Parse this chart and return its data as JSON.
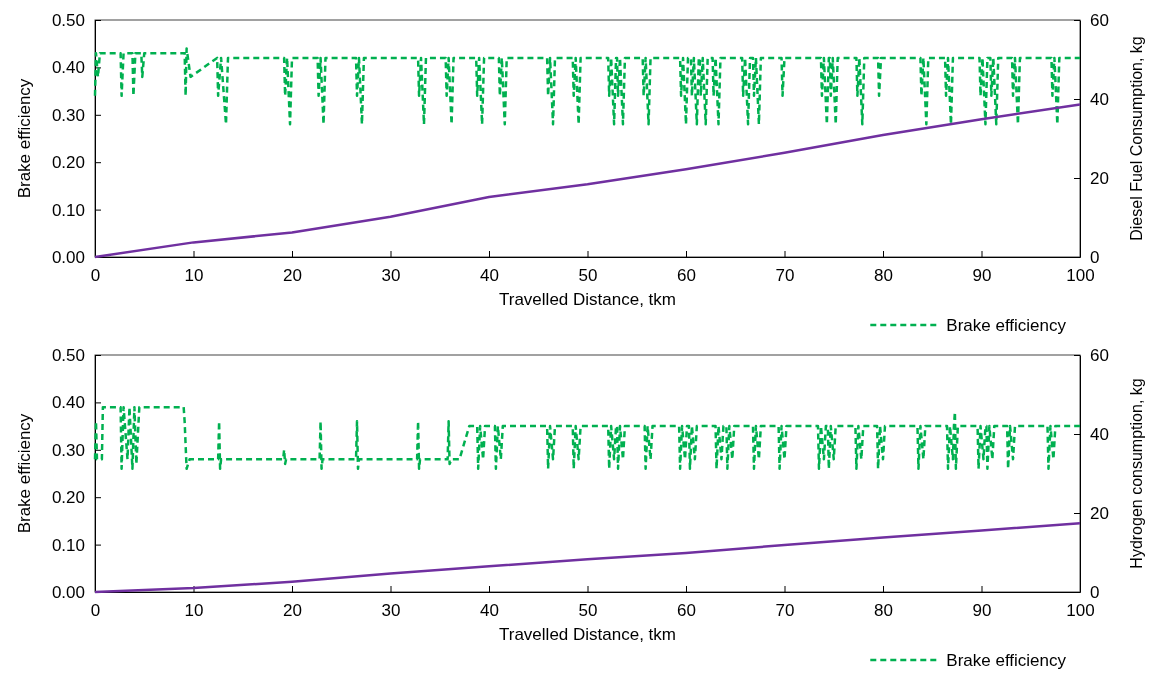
{
  "chart_data": [
    {
      "type": "line",
      "xlabel": "Travelled Distance, tkm",
      "ylabel": "Brake efficiency",
      "y2label": "Diesel Fuel Consumption, kg",
      "xlim": [
        0,
        100
      ],
      "xticks": [
        0,
        10,
        20,
        30,
        40,
        50,
        60,
        70,
        80,
        90,
        100
      ],
      "ylim": [
        0,
        0.5
      ],
      "yticks": [
        {
          "value": 0,
          "label": "0.00"
        },
        {
          "value": 0.1,
          "label": "0.10"
        },
        {
          "value": 0.2,
          "label": "0.20"
        },
        {
          "value": 0.3,
          "label": "0.30"
        },
        {
          "value": 0.4,
          "label": "0.40"
        },
        {
          "value": 0.5,
          "label": "0.50"
        }
      ],
      "y2lim": [
        0,
        60
      ],
      "y2ticks": [
        0,
        20,
        40,
        60
      ],
      "grid": false,
      "legend": "bottom right",
      "series": [
        {
          "name": "Brake efficiency",
          "color": "#00b050",
          "line_style": "dashed",
          "x": [
            0,
            0.1,
            0.3,
            0.5,
            2.6,
            2.7,
            2.9,
            3.8,
            3.9,
            4.1,
            4.7,
            4.8,
            5.0,
            9.1,
            9.2,
            9.3,
            9.7,
            12.4,
            12.5,
            12.8,
            13.3,
            13.5,
            19.2,
            19.3,
            19.5,
            19.8,
            20.0,
            22.6,
            22.7,
            22.9,
            23.2,
            23.4,
            26.5,
            26.6,
            26.8,
            27.1,
            27.3,
            32.8,
            32.9,
            33.1,
            33.4,
            33.6,
            35.6,
            35.7,
            35.9,
            36.2,
            36.4,
            38.7,
            38.8,
            39.0,
            39.3,
            39.5,
            41.0,
            41.1,
            41.3,
            41.6,
            41.8,
            45.9,
            46.0,
            46.2,
            46.5,
            46.7,
            48.5,
            48.6,
            48.8,
            49.1,
            49.3,
            52.1,
            52.2,
            52.4,
            52.7,
            52.9,
            53.0,
            53.1,
            53.3,
            53.6,
            53.8,
            55.6,
            55.7,
            55.9,
            56.2,
            56.4,
            59.4,
            59.5,
            59.7,
            60.0,
            60.2,
            60.5,
            60.6,
            60.8,
            61.1,
            61.3,
            61.4,
            61.5,
            61.7,
            62.0,
            62.2,
            62.7,
            62.8,
            63.0,
            63.3,
            63.5,
            65.7,
            65.8,
            66.0,
            66.3,
            66.5,
            66.8,
            66.9,
            67.1,
            67.4,
            67.6,
            69.7,
            69.8,
            70.0,
            73.7,
            73.8,
            74.0,
            74.3,
            74.5,
            74.6,
            74.7,
            74.9,
            75.2,
            75.4,
            77.3,
            77.4,
            77.6,
            77.9,
            78.1,
            79.5,
            79.6,
            79.8,
            83.8,
            83.9,
            84.1,
            84.4,
            84.6,
            86.3,
            86.4,
            86.6,
            86.9,
            87.1,
            89.8,
            89.9,
            90.1,
            90.4,
            90.6,
            90.9,
            91.0,
            91.2,
            91.5,
            91.7,
            93.1,
            93.2,
            93.4,
            93.7,
            93.9,
            97.1,
            97.2,
            97.4,
            97.7,
            97.9,
            100
          ],
          "values": [
            0.34,
            0.43,
            0.38,
            0.43,
            0.43,
            0.34,
            0.43,
            0.43,
            0.34,
            0.43,
            0.43,
            0.38,
            0.43,
            0.43,
            0.34,
            0.44,
            0.38,
            0.42,
            0.34,
            0.42,
            0.28,
            0.42,
            0.42,
            0.34,
            0.42,
            0.28,
            0.42,
            0.42,
            0.34,
            0.42,
            0.28,
            0.42,
            0.42,
            0.34,
            0.42,
            0.28,
            0.42,
            0.42,
            0.34,
            0.42,
            0.28,
            0.42,
            0.42,
            0.34,
            0.42,
            0.28,
            0.42,
            0.42,
            0.34,
            0.42,
            0.28,
            0.42,
            0.42,
            0.34,
            0.42,
            0.28,
            0.42,
            0.42,
            0.34,
            0.42,
            0.28,
            0.42,
            0.42,
            0.34,
            0.42,
            0.28,
            0.42,
            0.42,
            0.34,
            0.42,
            0.28,
            0.42,
            0.42,
            0.34,
            0.42,
            0.28,
            0.42,
            0.42,
            0.34,
            0.42,
            0.28,
            0.42,
            0.42,
            0.34,
            0.42,
            0.28,
            0.42,
            0.42,
            0.34,
            0.42,
            0.28,
            0.42,
            0.42,
            0.34,
            0.42,
            0.28,
            0.42,
            0.42,
            0.34,
            0.42,
            0.28,
            0.42,
            0.42,
            0.34,
            0.42,
            0.28,
            0.42,
            0.42,
            0.34,
            0.42,
            0.28,
            0.42,
            0.42,
            0.34,
            0.42,
            0.42,
            0.34,
            0.42,
            0.28,
            0.42,
            0.42,
            0.34,
            0.42,
            0.28,
            0.42,
            0.42,
            0.34,
            0.42,
            0.28,
            0.42,
            0.42,
            0.34,
            0.42,
            0.42,
            0.34,
            0.42,
            0.28,
            0.42,
            0.42,
            0.34,
            0.42,
            0.28,
            0.42,
            0.42,
            0.34,
            0.42,
            0.28,
            0.42,
            0.42,
            0.34,
            0.42,
            0.28,
            0.42,
            0.42,
            0.34,
            0.42,
            0.28,
            0.42,
            0.42,
            0.34,
            0.42,
            0.28,
            0.42,
            0.42
          ]
        },
        {
          "color": "#7030a0",
          "axis": "y2",
          "line_style": "solid",
          "x": [
            0,
            10,
            20,
            30,
            40,
            50,
            60,
            70,
            80,
            90,
            100
          ],
          "values": [
            0,
            3.7,
            6.2,
            10.2,
            15.2,
            18.4,
            22.2,
            26.4,
            30.9,
            34.9,
            38.6
          ]
        }
      ]
    },
    {
      "type": "line",
      "xlabel": "Travelled Distance, tkm",
      "ylabel": "Brake efficiency",
      "y2label": "Hydrogen consumption, kg",
      "xlim": [
        0,
        100
      ],
      "xticks": [
        0,
        10,
        20,
        30,
        40,
        50,
        60,
        70,
        80,
        90,
        100
      ],
      "ylim": [
        0,
        0.5
      ],
      "yticks": [
        {
          "value": 0,
          "label": "0.00"
        },
        {
          "value": 0.1,
          "label": "0.10"
        },
        {
          "value": 0.2,
          "label": "0.20"
        },
        {
          "value": 0.3,
          "label": "0.30"
        },
        {
          "value": 0.4,
          "label": "0.40"
        },
        {
          "value": 0.5,
          "label": "0.50"
        }
      ],
      "y2lim": [
        0,
        60
      ],
      "y2ticks": [
        0,
        20,
        40,
        60
      ],
      "grid": false,
      "legend": "bottom right",
      "series": [
        {
          "name": "Brake efficiency",
          "color": "#00b050",
          "line_style": "dashed",
          "x": [
            0,
            0.1,
            0.2,
            0.7,
            0.8,
            2.6,
            2.7,
            2.9,
            3.3,
            3.5,
            3.8,
            4.0,
            4.2,
            4.5,
            9.0,
            9.1,
            9.3,
            9.6,
            12.5,
            12.6,
            12.7,
            12.8,
            19.1,
            19.2,
            19.3,
            19.4,
            22.8,
            22.9,
            23.0,
            23.1,
            26.5,
            26.6,
            26.7,
            26.8,
            32.7,
            32.8,
            32.9,
            33.0,
            35.8,
            35.9,
            36.0,
            36.2,
            37.0,
            38.0,
            38.8,
            38.9,
            39.1,
            39.4,
            39.6,
            40.6,
            40.7,
            40.9,
            41.2,
            41.4,
            45.9,
            46.0,
            46.2,
            46.5,
            46.7,
            48.5,
            48.6,
            48.8,
            49.1,
            49.3,
            52.1,
            52.2,
            52.4,
            52.7,
            52.9,
            53.0,
            53.1,
            53.3,
            53.6,
            53.8,
            55.8,
            55.9,
            56.1,
            56.4,
            56.6,
            59.3,
            59.4,
            59.6,
            59.9,
            60.1,
            60.3,
            60.4,
            60.6,
            60.9,
            61.1,
            63.0,
            63.1,
            63.3,
            63.6,
            63.8,
            64.1,
            64.2,
            64.4,
            64.7,
            64.9,
            66.8,
            66.9,
            67.1,
            67.4,
            67.6,
            69.4,
            69.5,
            69.7,
            70.0,
            70.2,
            73.4,
            73.5,
            73.7,
            74.0,
            74.2,
            74.4,
            74.5,
            74.7,
            75.0,
            75.2,
            77.2,
            77.3,
            77.5,
            77.8,
            78.0,
            79.4,
            79.5,
            79.7,
            80.0,
            80.2,
            83.5,
            83.6,
            83.8,
            84.1,
            84.3,
            86.5,
            86.6,
            86.8,
            87.1,
            87.2,
            87.3,
            87.4,
            87.6,
            89.6,
            89.7,
            89.9,
            90.2,
            90.4,
            90.5,
            90.6,
            90.8,
            91.1,
            91.3,
            92.6,
            92.7,
            92.9,
            93.2,
            93.4,
            96.7,
            96.8,
            97.0,
            97.3,
            97.5,
            100
          ],
          "values": [
            0.28,
            0.36,
            0.28,
            0.28,
            0.39,
            0.39,
            0.26,
            0.39,
            0.28,
            0.39,
            0.26,
            0.39,
            0.27,
            0.39,
            0.39,
            0.36,
            0.26,
            0.28,
            0.28,
            0.36,
            0.26,
            0.28,
            0.28,
            0.3,
            0.27,
            0.28,
            0.28,
            0.36,
            0.26,
            0.28,
            0.28,
            0.36,
            0.26,
            0.28,
            0.28,
            0.36,
            0.26,
            0.28,
            0.28,
            0.36,
            0.27,
            0.28,
            0.28,
            0.35,
            0.35,
            0.26,
            0.35,
            0.28,
            0.35,
            0.35,
            0.26,
            0.35,
            0.28,
            0.35,
            0.35,
            0.26,
            0.35,
            0.28,
            0.35,
            0.35,
            0.26,
            0.35,
            0.28,
            0.35,
            0.35,
            0.26,
            0.35,
            0.28,
            0.35,
            0.35,
            0.26,
            0.35,
            0.28,
            0.35,
            0.35,
            0.26,
            0.35,
            0.28,
            0.35,
            0.35,
            0.26,
            0.35,
            0.28,
            0.35,
            0.35,
            0.26,
            0.35,
            0.28,
            0.35,
            0.35,
            0.26,
            0.35,
            0.28,
            0.35,
            0.35,
            0.26,
            0.35,
            0.28,
            0.35,
            0.35,
            0.26,
            0.35,
            0.28,
            0.35,
            0.35,
            0.26,
            0.35,
            0.28,
            0.35,
            0.35,
            0.26,
            0.35,
            0.28,
            0.35,
            0.35,
            0.26,
            0.35,
            0.28,
            0.35,
            0.35,
            0.26,
            0.35,
            0.28,
            0.35,
            0.35,
            0.26,
            0.35,
            0.28,
            0.35,
            0.35,
            0.26,
            0.35,
            0.28,
            0.35,
            0.35,
            0.26,
            0.35,
            0.28,
            0.35,
            0.38,
            0.26,
            0.35,
            0.35,
            0.26,
            0.35,
            0.28,
            0.35,
            0.35,
            0.26,
            0.35,
            0.28,
            0.35,
            0.35,
            0.26,
            0.35,
            0.28,
            0.35,
            0.35,
            0.26,
            0.35,
            0.28,
            0.35,
            0.35
          ]
        },
        {
          "color": "#7030a0",
          "axis": "y2",
          "line_style": "solid",
          "x": [
            0,
            10,
            20,
            30,
            40,
            50,
            60,
            70,
            80,
            90,
            100
          ],
          "values": [
            0,
            1.0,
            2.6,
            4.7,
            6.5,
            8.3,
            9.9,
            11.9,
            13.8,
            15.6,
            17.4
          ]
        }
      ]
    }
  ]
}
